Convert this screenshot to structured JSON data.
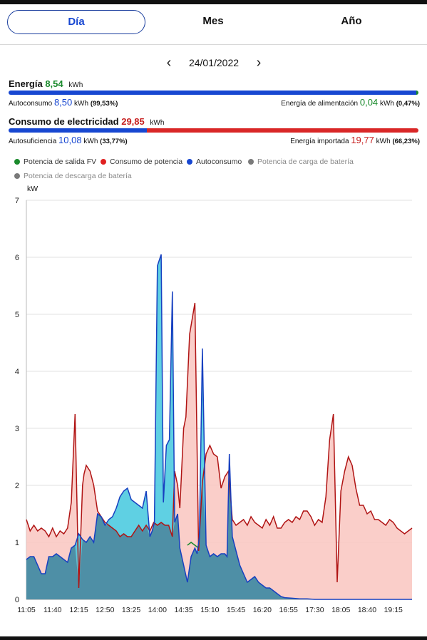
{
  "tabs": [
    {
      "label": "Día",
      "active": true
    },
    {
      "label": "Mes",
      "active": false
    },
    {
      "label": "Año",
      "active": false
    }
  ],
  "date_nav": {
    "prev_icon": "chevron-left-icon",
    "date": "24/01/2022",
    "next_icon": "chevron-right-icon"
  },
  "energy": {
    "label": "Energía",
    "value": "8,54",
    "unit": "kWh",
    "bar_fraction": 0.9953,
    "self_label": "Autoconsumo",
    "self_value": "8,50",
    "self_unit": "kWh",
    "self_pct": "(99,53%)",
    "feed_label": "Energía de alimentación",
    "feed_value": "0,04",
    "feed_unit": "kWh",
    "feed_pct": "(0,47%)"
  },
  "consumption": {
    "label": "Consumo de electricidad",
    "value": "29,85",
    "unit": "kWh",
    "bar_fraction": 0.3377,
    "self_label": "Autosuficiencia",
    "self_value": "10,08",
    "self_unit": "kWh",
    "self_pct": "(33,77%)",
    "import_label": "Energía importada",
    "import_value": "19,77",
    "import_unit": "kWh",
    "import_pct": "(66,23%)"
  },
  "colors": {
    "blue": "#1747d1",
    "green": "#1a8a2c",
    "red": "#c71f1f",
    "grey": "#7a7a7a",
    "cyan": "#43c8de",
    "pink": "#f9c6c0",
    "teal": "#4e8fa6"
  },
  "legend": [
    {
      "label": "Potencia de salida FV",
      "color": "#1a8a2c"
    },
    {
      "label": "Consumo de potencia",
      "color": "#e02020"
    },
    {
      "label": "Autoconsumo",
      "color": "#1747d1"
    },
    {
      "label": "Potencia de carga de batería",
      "color": "#7a7a7a"
    },
    {
      "label": "Potencia de descarga de batería",
      "color": "#7a7a7a"
    }
  ],
  "chart_data": {
    "type": "area",
    "ylabel": "kW",
    "ylim": [
      0,
      7
    ],
    "yticks": [
      0,
      1,
      2,
      3,
      4,
      5,
      6,
      7
    ],
    "xticks": [
      "11:05",
      "11:40",
      "12:15",
      "12:50",
      "13:25",
      "14:00",
      "14:35",
      "15:10",
      "15:45",
      "16:20",
      "16:55",
      "17:30",
      "18:05",
      "18:40",
      "19:15"
    ],
    "x_range_minutes": [
      665,
      1180
    ],
    "grid": "horizontal",
    "series": [
      {
        "name": "Consumo de potencia",
        "x": [
          665,
          670,
          675,
          680,
          685,
          690,
          695,
          700,
          705,
          710,
          715,
          720,
          725,
          730,
          735,
          740,
          742,
          745,
          750,
          755,
          760,
          765,
          770,
          775,
          780,
          785,
          790,
          795,
          800,
          805,
          810,
          815,
          820,
          825,
          830,
          835,
          840,
          845,
          850,
          855,
          860,
          863,
          867,
          870,
          875,
          878,
          883,
          890,
          895,
          900,
          905,
          910,
          915,
          920,
          925,
          930,
          935,
          940,
          945,
          950,
          955,
          960,
          965,
          970,
          975,
          980,
          985,
          990,
          995,
          1000,
          1005,
          1010,
          1015,
          1020,
          1025,
          1030,
          1035,
          1040,
          1045,
          1050,
          1055,
          1060,
          1065,
          1070,
          1075,
          1080,
          1085,
          1090,
          1095,
          1100,
          1105,
          1110,
          1115,
          1120,
          1125,
          1130,
          1135,
          1140,
          1145,
          1150,
          1155,
          1160,
          1165,
          1170,
          1175,
          1180
        ],
        "values": [
          1.4,
          1.2,
          1.3,
          1.2,
          1.25,
          1.2,
          1.1,
          1.25,
          1.1,
          1.2,
          1.15,
          1.25,
          1.7,
          3.25,
          0.2,
          2.0,
          2.2,
          2.35,
          2.25,
          2.0,
          1.55,
          1.45,
          1.35,
          1.3,
          1.25,
          1.2,
          1.1,
          1.15,
          1.1,
          1.1,
          1.2,
          1.3,
          1.2,
          1.3,
          1.2,
          1.35,
          1.3,
          1.35,
          1.3,
          1.3,
          1.1,
          2.25,
          2.0,
          1.6,
          3.0,
          3.2,
          4.65,
          5.2,
          0.85,
          2.05,
          2.55,
          2.7,
          2.55,
          2.5,
          1.95,
          2.15,
          2.25,
          1.4,
          1.3,
          1.35,
          1.4,
          1.3,
          1.45,
          1.35,
          1.3,
          1.25,
          1.4,
          1.3,
          1.45,
          1.25,
          1.25,
          1.35,
          1.4,
          1.35,
          1.45,
          1.4,
          1.55,
          1.55,
          1.45,
          1.3,
          1.4,
          1.35,
          1.8,
          2.8,
          3.25,
          0.3,
          1.9,
          2.25,
          2.5,
          2.35,
          1.95,
          1.65,
          1.65,
          1.5,
          1.55,
          1.4,
          1.4,
          1.35,
          1.3,
          1.4,
          1.35,
          1.25,
          1.2,
          1.15,
          1.2,
          1.25
        ]
      },
      {
        "name": "Autoconsumo",
        "x": [
          665,
          670,
          675,
          680,
          685,
          690,
          695,
          700,
          705,
          710,
          715,
          720,
          725,
          730,
          735,
          740,
          745,
          750,
          755,
          760,
          765,
          770,
          775,
          780,
          785,
          790,
          795,
          800,
          805,
          810,
          815,
          820,
          825,
          830,
          833,
          836,
          840,
          845,
          848,
          852,
          856,
          860,
          863,
          867,
          870,
          875,
          880,
          885,
          890,
          893,
          896,
          900,
          905,
          910,
          915,
          920,
          925,
          930,
          933,
          936,
          940,
          945,
          950,
          955,
          960,
          965,
          970,
          975,
          980,
          985,
          990,
          995,
          1000,
          1005,
          1010,
          1020,
          1030,
          1040,
          1050,
          1060,
          1070,
          1080,
          1090,
          1100,
          1110,
          1120,
          1130,
          1140,
          1150,
          1160,
          1170,
          1180
        ],
        "values": [
          0.7,
          0.75,
          0.75,
          0.6,
          0.45,
          0.45,
          0.75,
          0.75,
          0.8,
          0.75,
          0.7,
          0.65,
          0.9,
          0.95,
          1.15,
          1.05,
          1.0,
          1.1,
          1.0,
          1.5,
          1.45,
          1.3,
          1.4,
          1.45,
          1.6,
          1.8,
          1.9,
          1.95,
          1.75,
          1.7,
          1.65,
          1.6,
          1.9,
          1.1,
          1.2,
          1.35,
          5.85,
          6.05,
          1.7,
          2.7,
          2.8,
          5.4,
          1.35,
          1.5,
          0.9,
          0.6,
          0.3,
          0.75,
          0.9,
          0.8,
          1.1,
          4.4,
          0.95,
          0.75,
          0.8,
          0.75,
          0.8,
          0.8,
          0.75,
          2.55,
          1.1,
          0.85,
          0.6,
          0.45,
          0.3,
          0.35,
          0.4,
          0.3,
          0.25,
          0.2,
          0.2,
          0.15,
          0.1,
          0.05,
          0.03,
          0.02,
          0.01,
          0.01,
          0,
          0,
          0,
          0,
          0,
          0,
          0,
          0,
          0,
          0,
          0,
          0,
          0,
          0
        ]
      },
      {
        "name": "Potencia de salida FV",
        "x": [
          880,
          885,
          890,
          895
        ],
        "values": [
          0.95,
          1.0,
          0.95,
          0.9
        ]
      }
    ]
  }
}
